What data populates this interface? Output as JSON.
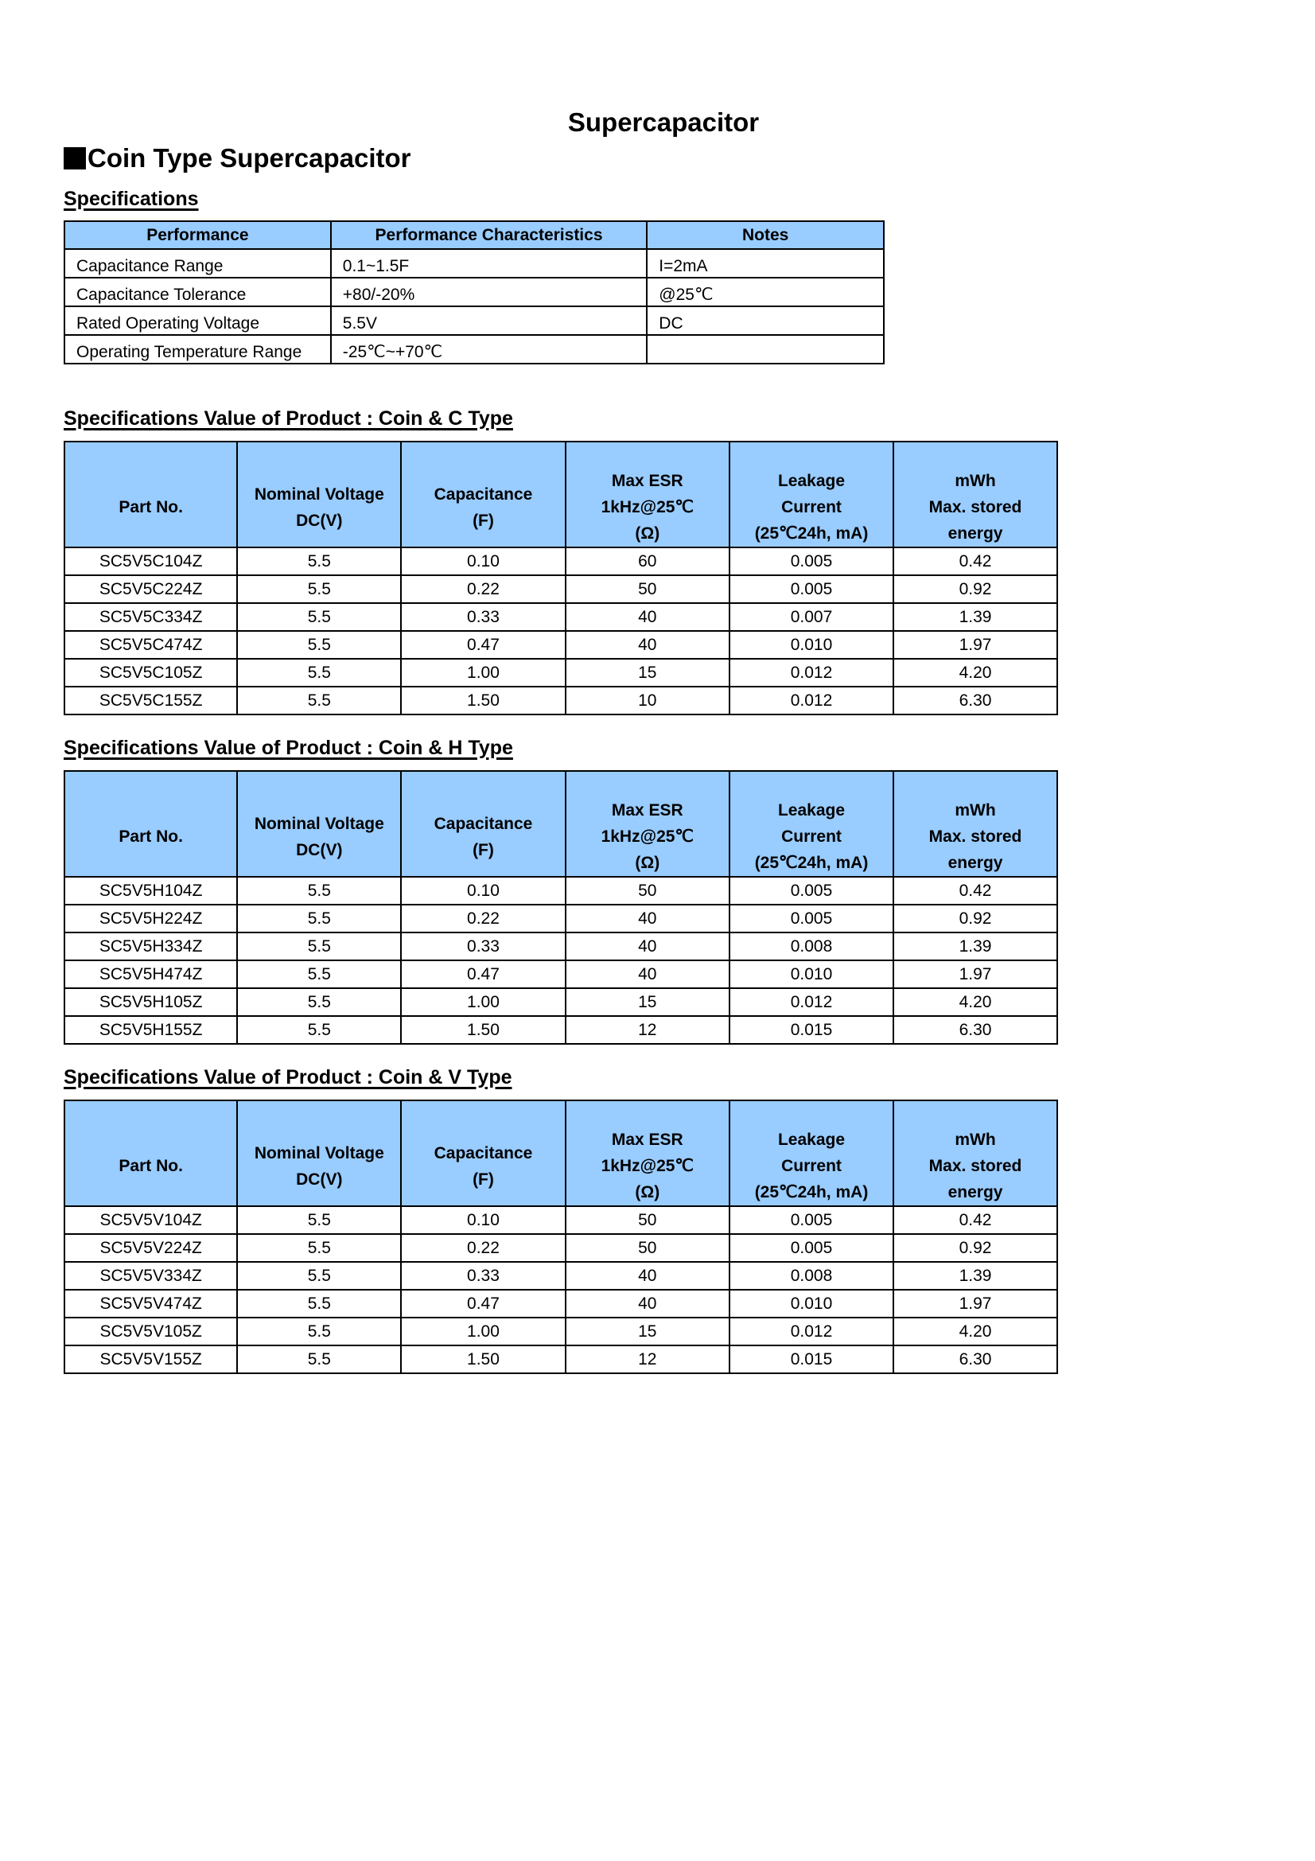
{
  "title": "Supercapacitor",
  "heading": "Coin Type Supercapacitor",
  "specifications": {
    "label": "Specifications",
    "headers": [
      "Performance",
      "Performance Characteristics",
      "Notes"
    ],
    "rows": [
      [
        "Capacitance Range",
        "0.1~1.5F",
        "I=2mA"
      ],
      [
        "Capacitance Tolerance",
        "+80/-20%",
        "@25℃"
      ],
      [
        "Rated Operating Voltage",
        "5.5V",
        "DC"
      ],
      [
        "Operating Temperature Range",
        "-25℃~+70℃",
        ""
      ]
    ]
  },
  "product_headers": [
    [
      "Part No."
    ],
    [
      "Nominal Voltage",
      "DC(V)"
    ],
    [
      "Capacitance",
      "(F)"
    ],
    [
      "Max ESR",
      "1kHz@25℃",
      "(Ω)"
    ],
    [
      "Leakage",
      "Current",
      "(25℃24h, mA)"
    ],
    [
      "mWh",
      "Max. stored",
      "energy"
    ]
  ],
  "product_tables": [
    {
      "label": "Specifications Value of Product : Coin & C Type",
      "rows": [
        [
          "SC5V5C104Z",
          "5.5",
          "0.10",
          "60",
          "0.005",
          "0.42"
        ],
        [
          "SC5V5C224Z",
          "5.5",
          "0.22",
          "50",
          "0.005",
          "0.92"
        ],
        [
          "SC5V5C334Z",
          "5.5",
          "0.33",
          "40",
          "0.007",
          "1.39"
        ],
        [
          "SC5V5C474Z",
          "5.5",
          "0.47",
          "40",
          "0.010",
          "1.97"
        ],
        [
          "SC5V5C105Z",
          "5.5",
          "1.00",
          "15",
          "0.012",
          "4.20"
        ],
        [
          "SC5V5C155Z",
          "5.5",
          "1.50",
          "10",
          "0.012",
          "6.30"
        ]
      ]
    },
    {
      "label": "Specifications Value of Product : Coin & H Type",
      "rows": [
        [
          "SC5V5H104Z",
          "5.5",
          "0.10",
          "50",
          "0.005",
          "0.42"
        ],
        [
          "SC5V5H224Z",
          "5.5",
          "0.22",
          "40",
          "0.005",
          "0.92"
        ],
        [
          "SC5V5H334Z",
          "5.5",
          "0.33",
          "40",
          "0.008",
          "1.39"
        ],
        [
          "SC5V5H474Z",
          "5.5",
          "0.47",
          "40",
          "0.010",
          "1.97"
        ],
        [
          "SC5V5H105Z",
          "5.5",
          "1.00",
          "15",
          "0.012",
          "4.20"
        ],
        [
          "SC5V5H155Z",
          "5.5",
          "1.50",
          "12",
          "0.015",
          "6.30"
        ]
      ]
    },
    {
      "label": "Specifications Value of Product : Coin & V Type",
      "rows": [
        [
          "SC5V5V104Z",
          "5.5",
          "0.10",
          "50",
          "0.005",
          "0.42"
        ],
        [
          "SC5V5V224Z",
          "5.5",
          "0.22",
          "50",
          "0.005",
          "0.92"
        ],
        [
          "SC5V5V334Z",
          "5.5",
          "0.33",
          "40",
          "0.008",
          "1.39"
        ],
        [
          "SC5V5V474Z",
          "5.5",
          "0.47",
          "40",
          "0.010",
          "1.97"
        ],
        [
          "SC5V5V105Z",
          "5.5",
          "1.00",
          "15",
          "0.012",
          "4.20"
        ],
        [
          "SC5V5V155Z",
          "5.5",
          "1.50",
          "12",
          "0.015",
          "6.30"
        ]
      ]
    }
  ]
}
